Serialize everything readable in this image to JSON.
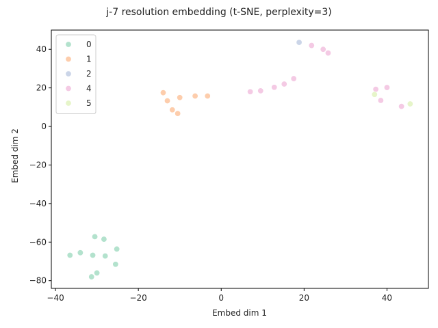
{
  "chart_data": {
    "type": "scatter",
    "title": "j-7 resolution embedding (t-SNE, perplexity=3)",
    "xlabel": "Embed dim 1",
    "ylabel": "Embed dim 2",
    "xlim": [
      -41,
      50
    ],
    "ylim": [
      -84,
      50
    ],
    "xticks": [
      -40,
      -20,
      0,
      20,
      40
    ],
    "yticks": [
      -80,
      -60,
      -40,
      -20,
      0,
      20,
      40
    ],
    "grid": false,
    "legend": "top-left",
    "series": [
      {
        "name": "0",
        "color": "#b3e2cd",
        "points": [
          [
            -36.5,
            -66.8
          ],
          [
            -34.0,
            -65.5
          ],
          [
            -31.0,
            -66.8
          ],
          [
            -30.5,
            -57.2
          ],
          [
            -28.3,
            -58.5
          ],
          [
            -28.0,
            -67.2
          ],
          [
            -25.2,
            -63.6
          ],
          [
            -25.5,
            -71.5
          ],
          [
            -30.0,
            -76.0
          ],
          [
            -31.3,
            -78.0
          ]
        ]
      },
      {
        "name": "1",
        "color": "#fdcdac",
        "points": [
          [
            -14.0,
            17.5
          ],
          [
            -13.0,
            13.3
          ],
          [
            -11.8,
            8.6
          ],
          [
            -10.5,
            6.7
          ],
          [
            -10.0,
            15.0
          ],
          [
            -6.3,
            15.8
          ],
          [
            -3.3,
            15.8
          ]
        ]
      },
      {
        "name": "2",
        "color": "#cbd5e8",
        "points": [
          [
            18.8,
            43.6
          ]
        ]
      },
      {
        "name": "4",
        "color": "#f4cae4",
        "points": [
          [
            7.0,
            18.0
          ],
          [
            9.5,
            18.5
          ],
          [
            12.8,
            20.3
          ],
          [
            15.2,
            22.0
          ],
          [
            17.5,
            24.8
          ],
          [
            21.8,
            42.0
          ],
          [
            24.6,
            40.0
          ],
          [
            25.8,
            38.1
          ],
          [
            37.3,
            19.3
          ],
          [
            40.0,
            20.2
          ],
          [
            38.5,
            13.5
          ],
          [
            43.5,
            10.4
          ]
        ]
      },
      {
        "name": "5",
        "color": "#e6f5c9",
        "points": [
          [
            37.0,
            16.6
          ],
          [
            45.6,
            11.7
          ]
        ]
      }
    ]
  }
}
